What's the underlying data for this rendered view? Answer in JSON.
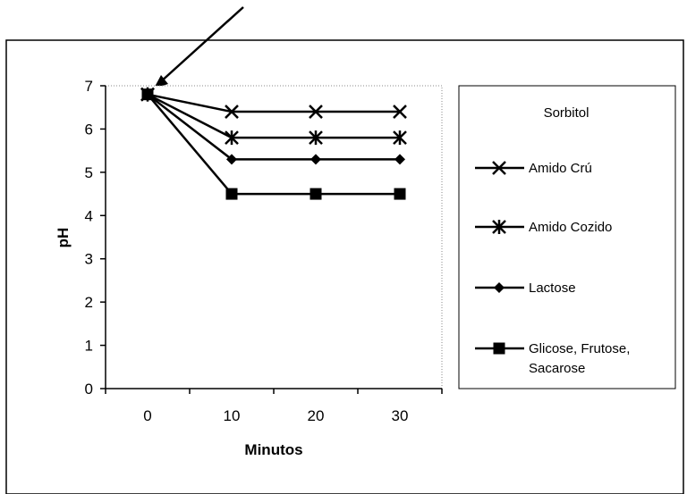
{
  "chart_data": {
    "type": "line",
    "title": "",
    "xlabel": "Minutos",
    "ylabel": "pH",
    "categories": [
      "0",
      "10",
      "20",
      "30"
    ],
    "ylim": [
      0,
      7
    ],
    "yticks": [
      0,
      1,
      2,
      3,
      4,
      5,
      6,
      7
    ],
    "grid": false,
    "legend": {
      "title": "Sorbitol",
      "placement": "right"
    },
    "series": [
      {
        "name": "Amido Crú",
        "marker": "x",
        "values": [
          6.8,
          6.4,
          6.4,
          6.4
        ]
      },
      {
        "name": "Amido Cozido",
        "marker": "star",
        "values": [
          6.8,
          5.8,
          5.8,
          5.8
        ]
      },
      {
        "name": "Lactose",
        "marker": "diamond",
        "values": [
          6.8,
          5.3,
          5.3,
          5.3
        ]
      },
      {
        "name": "Glicose, Frutose, Sacarose",
        "marker": "square",
        "values": [
          6.8,
          4.5,
          4.5,
          4.5
        ]
      }
    ]
  }
}
